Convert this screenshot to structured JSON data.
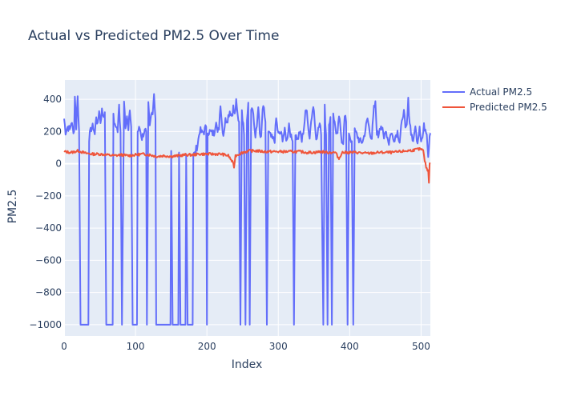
{
  "chart_data": {
    "type": "line",
    "title": "Actual vs Predicted PM2.5 Over Time",
    "xlabel": "Index",
    "ylabel": "PM2.5",
    "xlim": [
      0,
      513
    ],
    "ylim": [
      -1070,
      520
    ],
    "x_ticks": [
      0,
      100,
      200,
      300,
      400,
      500
    ],
    "y_ticks": [
      400,
      200,
      0,
      -200,
      -400,
      -600,
      -800,
      -1000
    ],
    "grid": true,
    "legend_position": "top-right",
    "colors": {
      "actual": "#636efa",
      "predicted": "#ef553b",
      "plot_bg": "#e5ecf6"
    },
    "series": [
      {
        "name": "Actual PM2.5",
        "color": "#636efa",
        "anchors": [
          [
            0,
            280
          ],
          [
            2,
            200
          ],
          [
            5,
            230
          ],
          [
            8,
            210
          ],
          [
            10,
            260
          ],
          [
            12,
            220
          ],
          [
            14,
            200
          ],
          [
            15,
            430
          ],
          [
            17,
            230
          ],
          [
            19,
            420
          ],
          [
            21,
            200
          ],
          [
            23,
            -1000
          ],
          [
            34,
            -1000
          ],
          [
            35,
            160
          ],
          [
            38,
            220
          ],
          [
            41,
            230
          ],
          [
            43,
            180
          ],
          [
            45,
            300
          ],
          [
            47,
            230
          ],
          [
            49,
            340
          ],
          [
            51,
            260
          ],
          [
            53,
            330
          ],
          [
            55,
            300
          ],
          [
            57,
            320
          ],
          [
            59,
            -1000
          ],
          [
            68,
            -1000
          ],
          [
            69,
            290
          ],
          [
            71,
            230
          ],
          [
            73,
            240
          ],
          [
            75,
            200
          ],
          [
            77,
            360
          ],
          [
            79,
            200
          ],
          [
            81,
            -1000
          ],
          [
            84,
            400
          ],
          [
            86,
            240
          ],
          [
            88,
            300
          ],
          [
            90,
            200
          ],
          [
            92,
            340
          ],
          [
            94,
            230
          ],
          [
            96,
            -1000
          ],
          [
            102,
            -1000
          ],
          [
            103,
            200
          ],
          [
            106,
            220
          ],
          [
            109,
            160
          ],
          [
            112,
            200
          ],
          [
            115,
            200
          ],
          [
            116,
            -1000
          ],
          [
            118,
            360
          ],
          [
            120,
            220
          ],
          [
            122,
            300
          ],
          [
            124,
            330
          ],
          [
            126,
            440
          ],
          [
            128,
            280
          ],
          [
            129,
            -1000
          ],
          [
            149,
            -1000
          ],
          [
            150,
            80
          ],
          [
            152,
            -1000
          ],
          [
            160,
            -1000
          ],
          [
            161,
            70
          ],
          [
            163,
            -1000
          ],
          [
            170,
            -1000
          ],
          [
            171,
            60
          ],
          [
            173,
            -1000
          ],
          [
            180,
            -1000
          ],
          [
            181,
            60
          ],
          [
            183,
            60
          ],
          [
            187,
            120
          ],
          [
            190,
            210
          ],
          [
            193,
            190
          ],
          [
            196,
            200
          ],
          [
            199,
            230
          ],
          [
            200,
            -1000
          ],
          [
            201,
            200
          ],
          [
            204,
            200
          ],
          [
            207,
            190
          ],
          [
            210,
            190
          ],
          [
            213,
            280
          ],
          [
            215,
            180
          ],
          [
            217,
            230
          ],
          [
            219,
            380
          ],
          [
            221,
            250
          ],
          [
            223,
            180
          ],
          [
            226,
            270
          ],
          [
            229,
            280
          ],
          [
            232,
            330
          ],
          [
            235,
            300
          ],
          [
            237,
            350
          ],
          [
            239,
            300
          ],
          [
            241,
            380
          ],
          [
            243,
            300
          ],
          [
            245,
            260
          ],
          [
            247,
            -1000
          ],
          [
            249,
            340
          ],
          [
            252,
            180
          ],
          [
            254,
            -1000
          ],
          [
            256,
            290
          ],
          [
            258,
            380
          ],
          [
            260,
            -1000
          ],
          [
            262,
            350
          ],
          [
            264,
            360
          ],
          [
            266,
            250
          ],
          [
            268,
            160
          ],
          [
            270,
            230
          ],
          [
            272,
            370
          ],
          [
            274,
            180
          ],
          [
            276,
            150
          ],
          [
            278,
            340
          ],
          [
            280,
            330
          ],
          [
            282,
            260
          ],
          [
            284,
            -1000
          ],
          [
            286,
            200
          ],
          [
            289,
            170
          ],
          [
            292,
            150
          ],
          [
            295,
            150
          ],
          [
            297,
            280
          ],
          [
            300,
            180
          ],
          [
            303,
            190
          ],
          [
            306,
            160
          ],
          [
            309,
            200
          ],
          [
            312,
            140
          ],
          [
            315,
            250
          ],
          [
            318,
            160
          ],
          [
            320,
            140
          ],
          [
            322,
            -1000
          ],
          [
            324,
            200
          ],
          [
            327,
            150
          ],
          [
            330,
            200
          ],
          [
            333,
            140
          ],
          [
            336,
            230
          ],
          [
            338,
            310
          ],
          [
            340,
            350
          ],
          [
            342,
            220
          ],
          [
            344,
            160
          ],
          [
            346,
            270
          ],
          [
            348,
            350
          ],
          [
            350,
            330
          ],
          [
            352,
            180
          ],
          [
            354,
            160
          ],
          [
            356,
            230
          ],
          [
            358,
            270
          ],
          [
            360,
            180
          ],
          [
            363,
            -1000
          ],
          [
            365,
            350
          ],
          [
            367,
            180
          ],
          [
            369,
            -1000
          ],
          [
            371,
            240
          ],
          [
            373,
            290
          ],
          [
            375,
            -1000
          ],
          [
            377,
            320
          ],
          [
            379,
            250
          ],
          [
            381,
            200
          ],
          [
            383,
            170
          ],
          [
            385,
            300
          ],
          [
            387,
            210
          ],
          [
            389,
            150
          ],
          [
            391,
            140
          ],
          [
            393,
            290
          ],
          [
            395,
            260
          ],
          [
            397,
            -1000
          ],
          [
            399,
            200
          ],
          [
            401,
            160
          ],
          [
            403,
            140
          ],
          [
            405,
            -1000
          ],
          [
            407,
            200
          ],
          [
            410,
            180
          ],
          [
            413,
            150
          ],
          [
            416,
            130
          ],
          [
            419,
            150
          ],
          [
            422,
            210
          ],
          [
            425,
            280
          ],
          [
            428,
            200
          ],
          [
            431,
            160
          ],
          [
            434,
            340
          ],
          [
            436,
            370
          ],
          [
            438,
            200
          ],
          [
            440,
            170
          ],
          [
            442,
            230
          ],
          [
            444,
            240
          ],
          [
            446,
            200
          ],
          [
            448,
            150
          ],
          [
            450,
            220
          ],
          [
            452,
            180
          ],
          [
            455,
            130
          ],
          [
            458,
            200
          ],
          [
            461,
            150
          ],
          [
            464,
            170
          ],
          [
            467,
            200
          ],
          [
            470,
            140
          ],
          [
            472,
            230
          ],
          [
            474,
            260
          ],
          [
            476,
            360
          ],
          [
            478,
            200
          ],
          [
            480,
            230
          ],
          [
            482,
            390
          ],
          [
            484,
            260
          ],
          [
            486,
            200
          ],
          [
            488,
            150
          ],
          [
            490,
            150
          ],
          [
            492,
            250
          ],
          [
            494,
            130
          ],
          [
            496,
            170
          ],
          [
            498,
            240
          ],
          [
            500,
            150
          ],
          [
            502,
            160
          ],
          [
            504,
            230
          ],
          [
            506,
            220
          ],
          [
            508,
            200
          ],
          [
            510,
            50
          ],
          [
            512,
            180
          ],
          [
            513,
            190
          ]
        ]
      },
      {
        "name": "Predicted PM2.5",
        "color": "#ef553b",
        "anchors": [
          [
            0,
            75
          ],
          [
            10,
            70
          ],
          [
            20,
            80
          ],
          [
            30,
            65
          ],
          [
            40,
            60
          ],
          [
            50,
            60
          ],
          [
            60,
            55
          ],
          [
            70,
            50
          ],
          [
            80,
            55
          ],
          [
            90,
            50
          ],
          [
            100,
            55
          ],
          [
            110,
            60
          ],
          [
            120,
            55
          ],
          [
            130,
            45
          ],
          [
            140,
            50
          ],
          [
            150,
            45
          ],
          [
            160,
            50
          ],
          [
            170,
            55
          ],
          [
            180,
            55
          ],
          [
            190,
            60
          ],
          [
            200,
            60
          ],
          [
            210,
            60
          ],
          [
            220,
            60
          ],
          [
            230,
            50
          ],
          [
            236,
            10
          ],
          [
            238,
            -20
          ],
          [
            240,
            50
          ],
          [
            250,
            70
          ],
          [
            260,
            80
          ],
          [
            270,
            80
          ],
          [
            280,
            75
          ],
          [
            290,
            75
          ],
          [
            300,
            75
          ],
          [
            310,
            75
          ],
          [
            320,
            75
          ],
          [
            330,
            75
          ],
          [
            340,
            70
          ],
          [
            350,
            70
          ],
          [
            360,
            75
          ],
          [
            370,
            70
          ],
          [
            380,
            70
          ],
          [
            385,
            30
          ],
          [
            388,
            60
          ],
          [
            390,
            70
          ],
          [
            400,
            70
          ],
          [
            410,
            70
          ],
          [
            420,
            65
          ],
          [
            430,
            65
          ],
          [
            440,
            70
          ],
          [
            450,
            70
          ],
          [
            460,
            70
          ],
          [
            470,
            75
          ],
          [
            480,
            80
          ],
          [
            490,
            85
          ],
          [
            495,
            90
          ],
          [
            500,
            90
          ],
          [
            503,
            80
          ],
          [
            505,
            20
          ],
          [
            507,
            -20
          ],
          [
            509,
            -40
          ],
          [
            510,
            -40
          ],
          [
            511,
            -120
          ],
          [
            512,
            10
          ],
          [
            513,
            0
          ]
        ]
      }
    ]
  }
}
